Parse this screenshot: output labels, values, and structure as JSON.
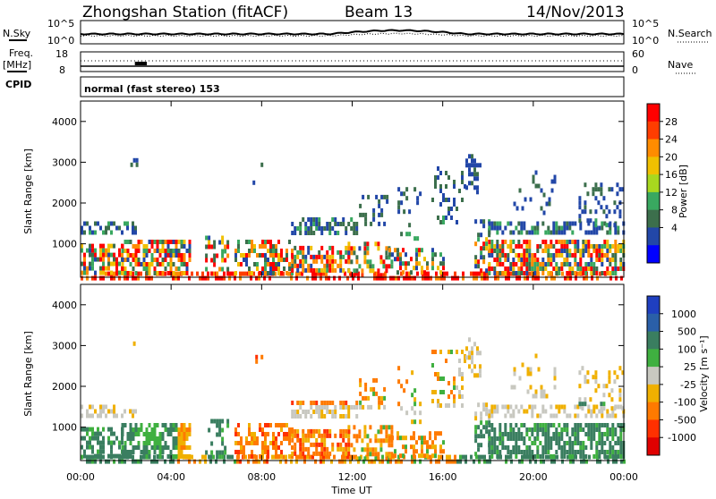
{
  "header": {
    "station": "Zhongshan Station (fitACF)",
    "beam": "Beam 13",
    "date": "14/Nov/2013"
  },
  "noise_panel": {
    "left_label": "N.Sky",
    "left_ticks": [
      "10^5",
      "10^0"
    ],
    "right_ticks": [
      "10^5",
      "10^0"
    ],
    "right_label": "N.Search"
  },
  "freq_panel": {
    "left_label_line1": "Freq.",
    "left_label_line2": "[MHz]",
    "left_ticks": [
      "18",
      "8"
    ],
    "right_ticks": [
      "60",
      "0"
    ],
    "right_label": "Nave"
  },
  "cpid": {
    "label": "CPID",
    "value": "normal (fast stereo) 153"
  },
  "chart_data": [
    {
      "type": "heatmap",
      "name": "power",
      "ylabel": "Slant Range [km]",
      "yticks": [
        "4000",
        "3000",
        "2000",
        "1000"
      ],
      "ylim": [
        180,
        4500
      ],
      "colorbar_label": "Power [dB]",
      "colorbar_ticks": [
        "28",
        "24",
        "20",
        "16",
        "12",
        "8",
        "4"
      ],
      "colorbar_colors": [
        "#ff0000",
        "#ff3d00",
        "#ff8c00",
        "#f0c000",
        "#a8d81f",
        "#39a860",
        "#3c6f4c",
        "#2247a8",
        "#0000ff"
      ]
    },
    {
      "type": "heatmap",
      "name": "velocity",
      "ylabel": "Slant Range [km]",
      "yticks": [
        "4000",
        "3000",
        "2000",
        "1000"
      ],
      "ylim": [
        180,
        4500
      ],
      "colorbar_label": "Velocity [m s⁻¹]",
      "colorbar_ticks": [
        "1000",
        "500",
        "100",
        "25",
        "-25",
        "-100",
        "-500",
        "-1000"
      ],
      "colorbar_colors": [
        "#1f3fc0",
        "#2a5fa8",
        "#3a7e60",
        "#3fb040",
        "#c8c8c0",
        "#f0b000",
        "#ff7a00",
        "#ff3000",
        "#e00000"
      ]
    }
  ],
  "x_axis": {
    "ticks": [
      "00:00",
      "04:00",
      "08:00",
      "12:00",
      "16:00",
      "20:00",
      "00:00"
    ],
    "label": "Time UT"
  }
}
